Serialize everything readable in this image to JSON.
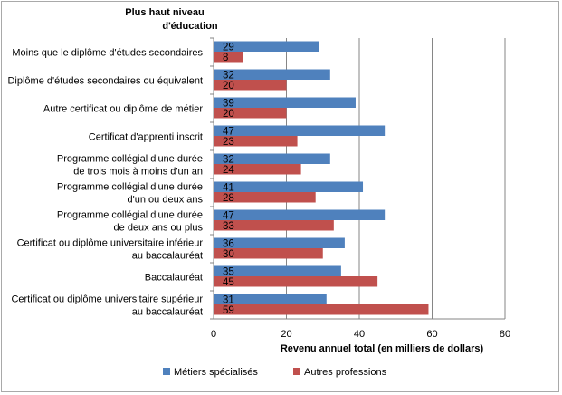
{
  "chart_data": {
    "type": "bar",
    "orientation": "horizontal",
    "category_axis_title": [
      "Plus haut niveau",
      "d'éducation"
    ],
    "xlabel": "Revenu annuel total (en milliers de dollars)",
    "xlim": [
      0,
      80
    ],
    "xticks": [
      0,
      20,
      40,
      60,
      80
    ],
    "grid": true,
    "legend_position": "bottom",
    "categories": [
      [
        "Moins que le diplôme d'études secondaires"
      ],
      [
        "Diplôme d'études secondaires ou équivalent"
      ],
      [
        "Autre certificat ou diplôme de métier"
      ],
      [
        "Certificat d'apprenti inscrit"
      ],
      [
        "Programme collégial d'une durée",
        "de trois mois à moins d'un an"
      ],
      [
        "Programme collégial d'une durée",
        "d'un ou deux ans"
      ],
      [
        "Programme collégial d'une durée",
        "de deux ans ou plus"
      ],
      [
        "Certificat ou diplôme universitaire inférieur",
        "au baccalauréat"
      ],
      [
        "Baccalauréat"
      ],
      [
        "Certificat ou diplôme universitaire supérieur",
        "au baccalauréat"
      ]
    ],
    "series": [
      {
        "name": "Métiers spécialisés",
        "color": "#4f81bd",
        "values": [
          29,
          32,
          39,
          47,
          32,
          41,
          47,
          36,
          35,
          31
        ]
      },
      {
        "name": "Autres professions",
        "color": "#c0504d",
        "values": [
          8,
          20,
          20,
          23,
          24,
          28,
          33,
          30,
          45,
          59
        ]
      }
    ]
  }
}
